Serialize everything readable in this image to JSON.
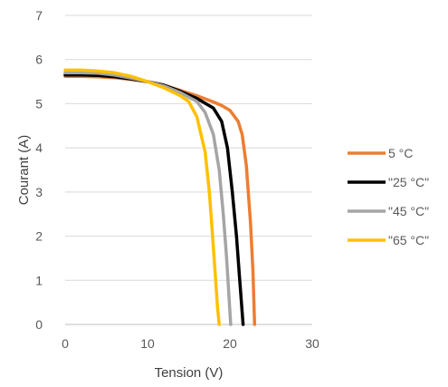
{
  "chart_data": {
    "type": "line",
    "title": "",
    "xlabel": "Tension (V)",
    "ylabel": "Courant (A)",
    "xlim": [
      0,
      30
    ],
    "ylim": [
      0,
      7
    ],
    "x_ticks": [
      0,
      10,
      20,
      30
    ],
    "y_ticks": [
      0,
      1,
      2,
      3,
      4,
      5,
      6,
      7
    ],
    "grid": "horizontal",
    "legend_position": "right",
    "series": [
      {
        "name": "5 °C",
        "color": "#ED7D31",
        "points": [
          [
            0,
            5.62
          ],
          [
            2,
            5.62
          ],
          [
            4,
            5.61
          ],
          [
            6,
            5.59
          ],
          [
            8,
            5.55
          ],
          [
            10,
            5.5
          ],
          [
            12,
            5.42
          ],
          [
            14,
            5.3
          ],
          [
            16,
            5.18
          ],
          [
            18,
            5.04
          ],
          [
            19,
            4.96
          ],
          [
            20,
            4.85
          ],
          [
            21,
            4.6
          ],
          [
            21.5,
            4.3
          ],
          [
            22,
            3.6
          ],
          [
            22.5,
            2.3
          ],
          [
            22.8,
            1.2
          ],
          [
            23,
            0
          ]
        ]
      },
      {
        "name": "\"25 °C\"",
        "color": "#000000",
        "points": [
          [
            0,
            5.65
          ],
          [
            2,
            5.65
          ],
          [
            4,
            5.64
          ],
          [
            6,
            5.61
          ],
          [
            8,
            5.56
          ],
          [
            10,
            5.5
          ],
          [
            12,
            5.42
          ],
          [
            14,
            5.28
          ],
          [
            16,
            5.12
          ],
          [
            18,
            4.9
          ],
          [
            19,
            4.6
          ],
          [
            19.7,
            4.0
          ],
          [
            20.3,
            3.0
          ],
          [
            20.8,
            2.0
          ],
          [
            21.2,
            1.0
          ],
          [
            21.6,
            0
          ]
        ]
      },
      {
        "name": "\"45 °C\"",
        "color": "#A5A5A5",
        "points": [
          [
            0,
            5.7
          ],
          [
            2,
            5.7
          ],
          [
            4,
            5.69
          ],
          [
            6,
            5.65
          ],
          [
            8,
            5.58
          ],
          [
            10,
            5.5
          ],
          [
            12,
            5.4
          ],
          [
            14,
            5.25
          ],
          [
            16,
            5.05
          ],
          [
            17,
            4.8
          ],
          [
            18,
            4.3
          ],
          [
            18.7,
            3.5
          ],
          [
            19.2,
            2.5
          ],
          [
            19.6,
            1.5
          ],
          [
            19.9,
            0.6
          ],
          [
            20.1,
            0
          ]
        ]
      },
      {
        "name": "\"65 °C\"",
        "color": "#FFC000",
        "points": [
          [
            0,
            5.76
          ],
          [
            2,
            5.76
          ],
          [
            4,
            5.74
          ],
          [
            6,
            5.7
          ],
          [
            8,
            5.62
          ],
          [
            10,
            5.5
          ],
          [
            12,
            5.36
          ],
          [
            14,
            5.18
          ],
          [
            15,
            5.05
          ],
          [
            16,
            4.7
          ],
          [
            17,
            3.9
          ],
          [
            17.5,
            3.0
          ],
          [
            17.9,
            2.0
          ],
          [
            18.2,
            1.2
          ],
          [
            18.5,
            0.4
          ],
          [
            18.7,
            0
          ]
        ]
      }
    ]
  }
}
